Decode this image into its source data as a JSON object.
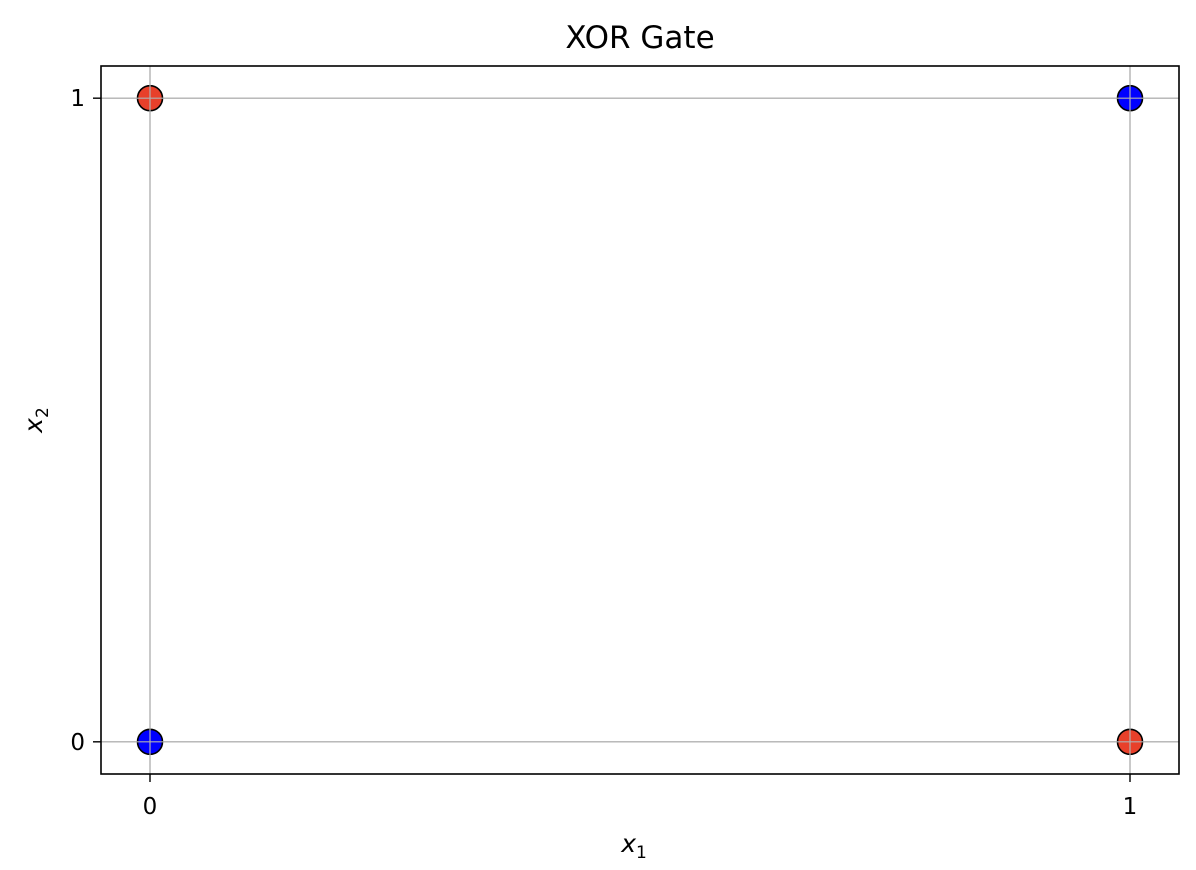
{
  "chart_data": {
    "type": "scatter",
    "title": "XOR Gate",
    "xlabel": {
      "base": "x",
      "sub": "1"
    },
    "ylabel": {
      "base": "x",
      "sub": "2"
    },
    "xlim": [
      -0.05,
      1.05
    ],
    "ylim": [
      -0.05,
      1.05
    ],
    "xticks": [
      0,
      1
    ],
    "yticks": [
      0,
      1
    ],
    "xtick_labels": [
      "0",
      "1"
    ],
    "ytick_labels": [
      "0",
      "1"
    ],
    "grid": true,
    "legend": "none",
    "points": [
      {
        "x": 0,
        "y": 0,
        "color": "#0000ff"
      },
      {
        "x": 0,
        "y": 1,
        "color": "#e8402a"
      },
      {
        "x": 1,
        "y": 0,
        "color": "#e8402a"
      },
      {
        "x": 1,
        "y": 1,
        "color": "#0000ff"
      }
    ],
    "marker_edge_color": "#000000",
    "grid_color": "#b0b0b0"
  }
}
